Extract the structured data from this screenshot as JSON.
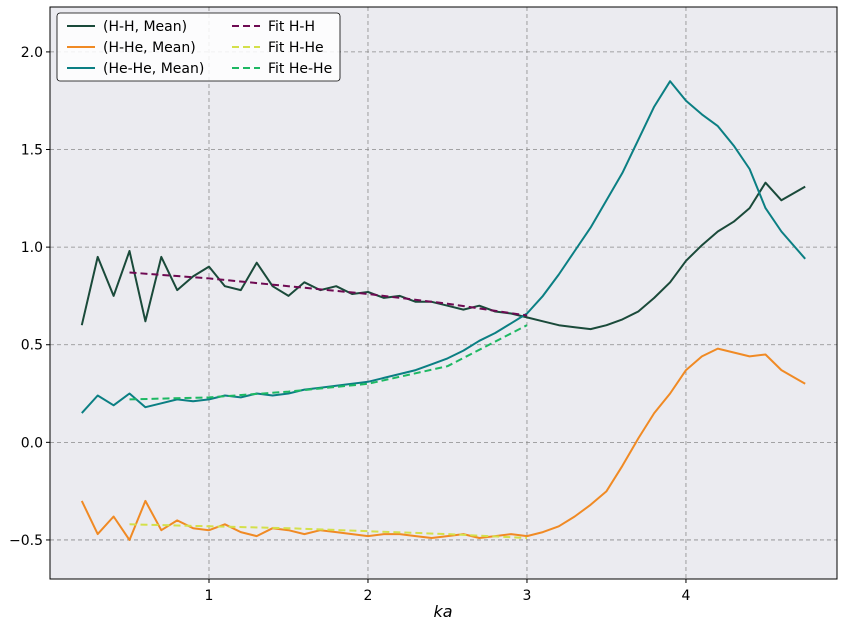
{
  "chart_data": {
    "type": "line",
    "xlabel": "ka",
    "ylabel": "",
    "title": "",
    "xlim": [
      0,
      4.95
    ],
    "ylim": [
      -0.7,
      2.23
    ],
    "xticks": [
      1,
      2,
      3,
      4
    ],
    "xtick_labels": [
      "1",
      "2",
      "3",
      "4"
    ],
    "yticks": [
      -0.5,
      0.0,
      0.5,
      1.0,
      1.5,
      2.0
    ],
    "ytick_labels": [
      "−0.5",
      "0.0",
      "0.5",
      "1.0",
      "1.5",
      "2.0"
    ],
    "grid": true,
    "legend_position": "top-left",
    "legend_columns": 2,
    "colors": {
      "H-H": "#1a4a3a",
      "H-He": "#f08a24",
      "He-He": "#0b7f83",
      "Fit H-H": "#6e0a52",
      "Fit H-He": "#d4e04a",
      "Fit He-He": "#1db863",
      "plot_background": "#ebebf0"
    },
    "series": [
      {
        "name": "(H-H, Mean)",
        "style": "solid",
        "x": [
          0.2,
          0.3,
          0.4,
          0.5,
          0.6,
          0.7,
          0.8,
          0.9,
          1.0,
          1.1,
          1.2,
          1.3,
          1.4,
          1.5,
          1.6,
          1.7,
          1.8,
          1.9,
          2.0,
          2.1,
          2.2,
          2.3,
          2.4,
          2.5,
          2.6,
          2.7,
          2.8,
          2.9,
          3.0,
          3.1,
          3.2,
          3.3,
          3.4,
          3.5,
          3.6,
          3.7,
          3.8,
          3.9,
          4.0,
          4.1,
          4.2,
          4.3,
          4.4,
          4.5,
          4.6,
          4.75
        ],
        "y": [
          0.6,
          0.95,
          0.75,
          0.98,
          0.62,
          0.95,
          0.78,
          0.85,
          0.9,
          0.8,
          0.78,
          0.92,
          0.8,
          0.75,
          0.82,
          0.78,
          0.8,
          0.76,
          0.77,
          0.74,
          0.75,
          0.72,
          0.72,
          0.7,
          0.68,
          0.7,
          0.67,
          0.66,
          0.64,
          0.62,
          0.6,
          0.59,
          0.58,
          0.6,
          0.63,
          0.67,
          0.74,
          0.82,
          0.93,
          1.01,
          1.08,
          1.13,
          1.2,
          1.33,
          1.24,
          1.31
        ]
      },
      {
        "name": "(H-He, Mean)",
        "style": "solid",
        "x": [
          0.2,
          0.3,
          0.4,
          0.5,
          0.6,
          0.7,
          0.8,
          0.9,
          1.0,
          1.1,
          1.2,
          1.3,
          1.4,
          1.5,
          1.6,
          1.7,
          1.8,
          1.9,
          2.0,
          2.1,
          2.2,
          2.3,
          2.4,
          2.5,
          2.6,
          2.7,
          2.8,
          2.9,
          3.0,
          3.1,
          3.2,
          3.3,
          3.4,
          3.5,
          3.6,
          3.7,
          3.8,
          3.9,
          4.0,
          4.1,
          4.2,
          4.3,
          4.4,
          4.5,
          4.6,
          4.75
        ],
        "y": [
          -0.3,
          -0.47,
          -0.38,
          -0.5,
          -0.3,
          -0.45,
          -0.4,
          -0.44,
          -0.45,
          -0.42,
          -0.46,
          -0.48,
          -0.44,
          -0.45,
          -0.47,
          -0.45,
          -0.46,
          -0.47,
          -0.48,
          -0.47,
          -0.47,
          -0.48,
          -0.49,
          -0.48,
          -0.47,
          -0.49,
          -0.48,
          -0.47,
          -0.48,
          -0.46,
          -0.43,
          -0.38,
          -0.32,
          -0.25,
          -0.12,
          0.02,
          0.15,
          0.25,
          0.37,
          0.44,
          0.48,
          0.46,
          0.44,
          0.45,
          0.37,
          0.3
        ]
      },
      {
        "name": "(He-He, Mean)",
        "style": "solid",
        "x": [
          0.2,
          0.3,
          0.4,
          0.5,
          0.6,
          0.7,
          0.8,
          0.9,
          1.0,
          1.1,
          1.2,
          1.3,
          1.4,
          1.5,
          1.6,
          1.7,
          1.8,
          1.9,
          2.0,
          2.1,
          2.2,
          2.3,
          2.4,
          2.5,
          2.6,
          2.7,
          2.8,
          2.9,
          3.0,
          3.1,
          3.2,
          3.3,
          3.4,
          3.5,
          3.6,
          3.7,
          3.8,
          3.9,
          4.0,
          4.1,
          4.2,
          4.3,
          4.4,
          4.5,
          4.6,
          4.75
        ],
        "y": [
          0.15,
          0.24,
          0.19,
          0.25,
          0.18,
          0.2,
          0.22,
          0.21,
          0.22,
          0.24,
          0.23,
          0.25,
          0.24,
          0.25,
          0.27,
          0.28,
          0.29,
          0.3,
          0.31,
          0.33,
          0.35,
          0.37,
          0.4,
          0.43,
          0.47,
          0.52,
          0.56,
          0.61,
          0.66,
          0.75,
          0.86,
          0.98,
          1.1,
          1.24,
          1.38,
          1.55,
          1.72,
          1.85,
          1.75,
          1.68,
          1.62,
          1.52,
          1.4,
          1.2,
          1.08,
          0.94
        ]
      },
      {
        "name": "Fit H-H",
        "style": "dashed",
        "x": [
          0.5,
          1.0,
          1.5,
          2.0,
          2.5,
          3.0
        ],
        "y": [
          0.87,
          0.84,
          0.8,
          0.76,
          0.71,
          0.65
        ]
      },
      {
        "name": "Fit H-He",
        "style": "dashed",
        "x": [
          0.5,
          1.0,
          1.5,
          2.0,
          2.5,
          3.0
        ],
        "y": [
          -0.42,
          -0.43,
          -0.44,
          -0.455,
          -0.47,
          -0.49
        ]
      },
      {
        "name": "Fit He-He",
        "style": "dashed",
        "x": [
          0.5,
          1.0,
          1.5,
          2.0,
          2.5,
          3.0
        ],
        "y": [
          0.22,
          0.23,
          0.26,
          0.3,
          0.39,
          0.6
        ]
      }
    ]
  }
}
